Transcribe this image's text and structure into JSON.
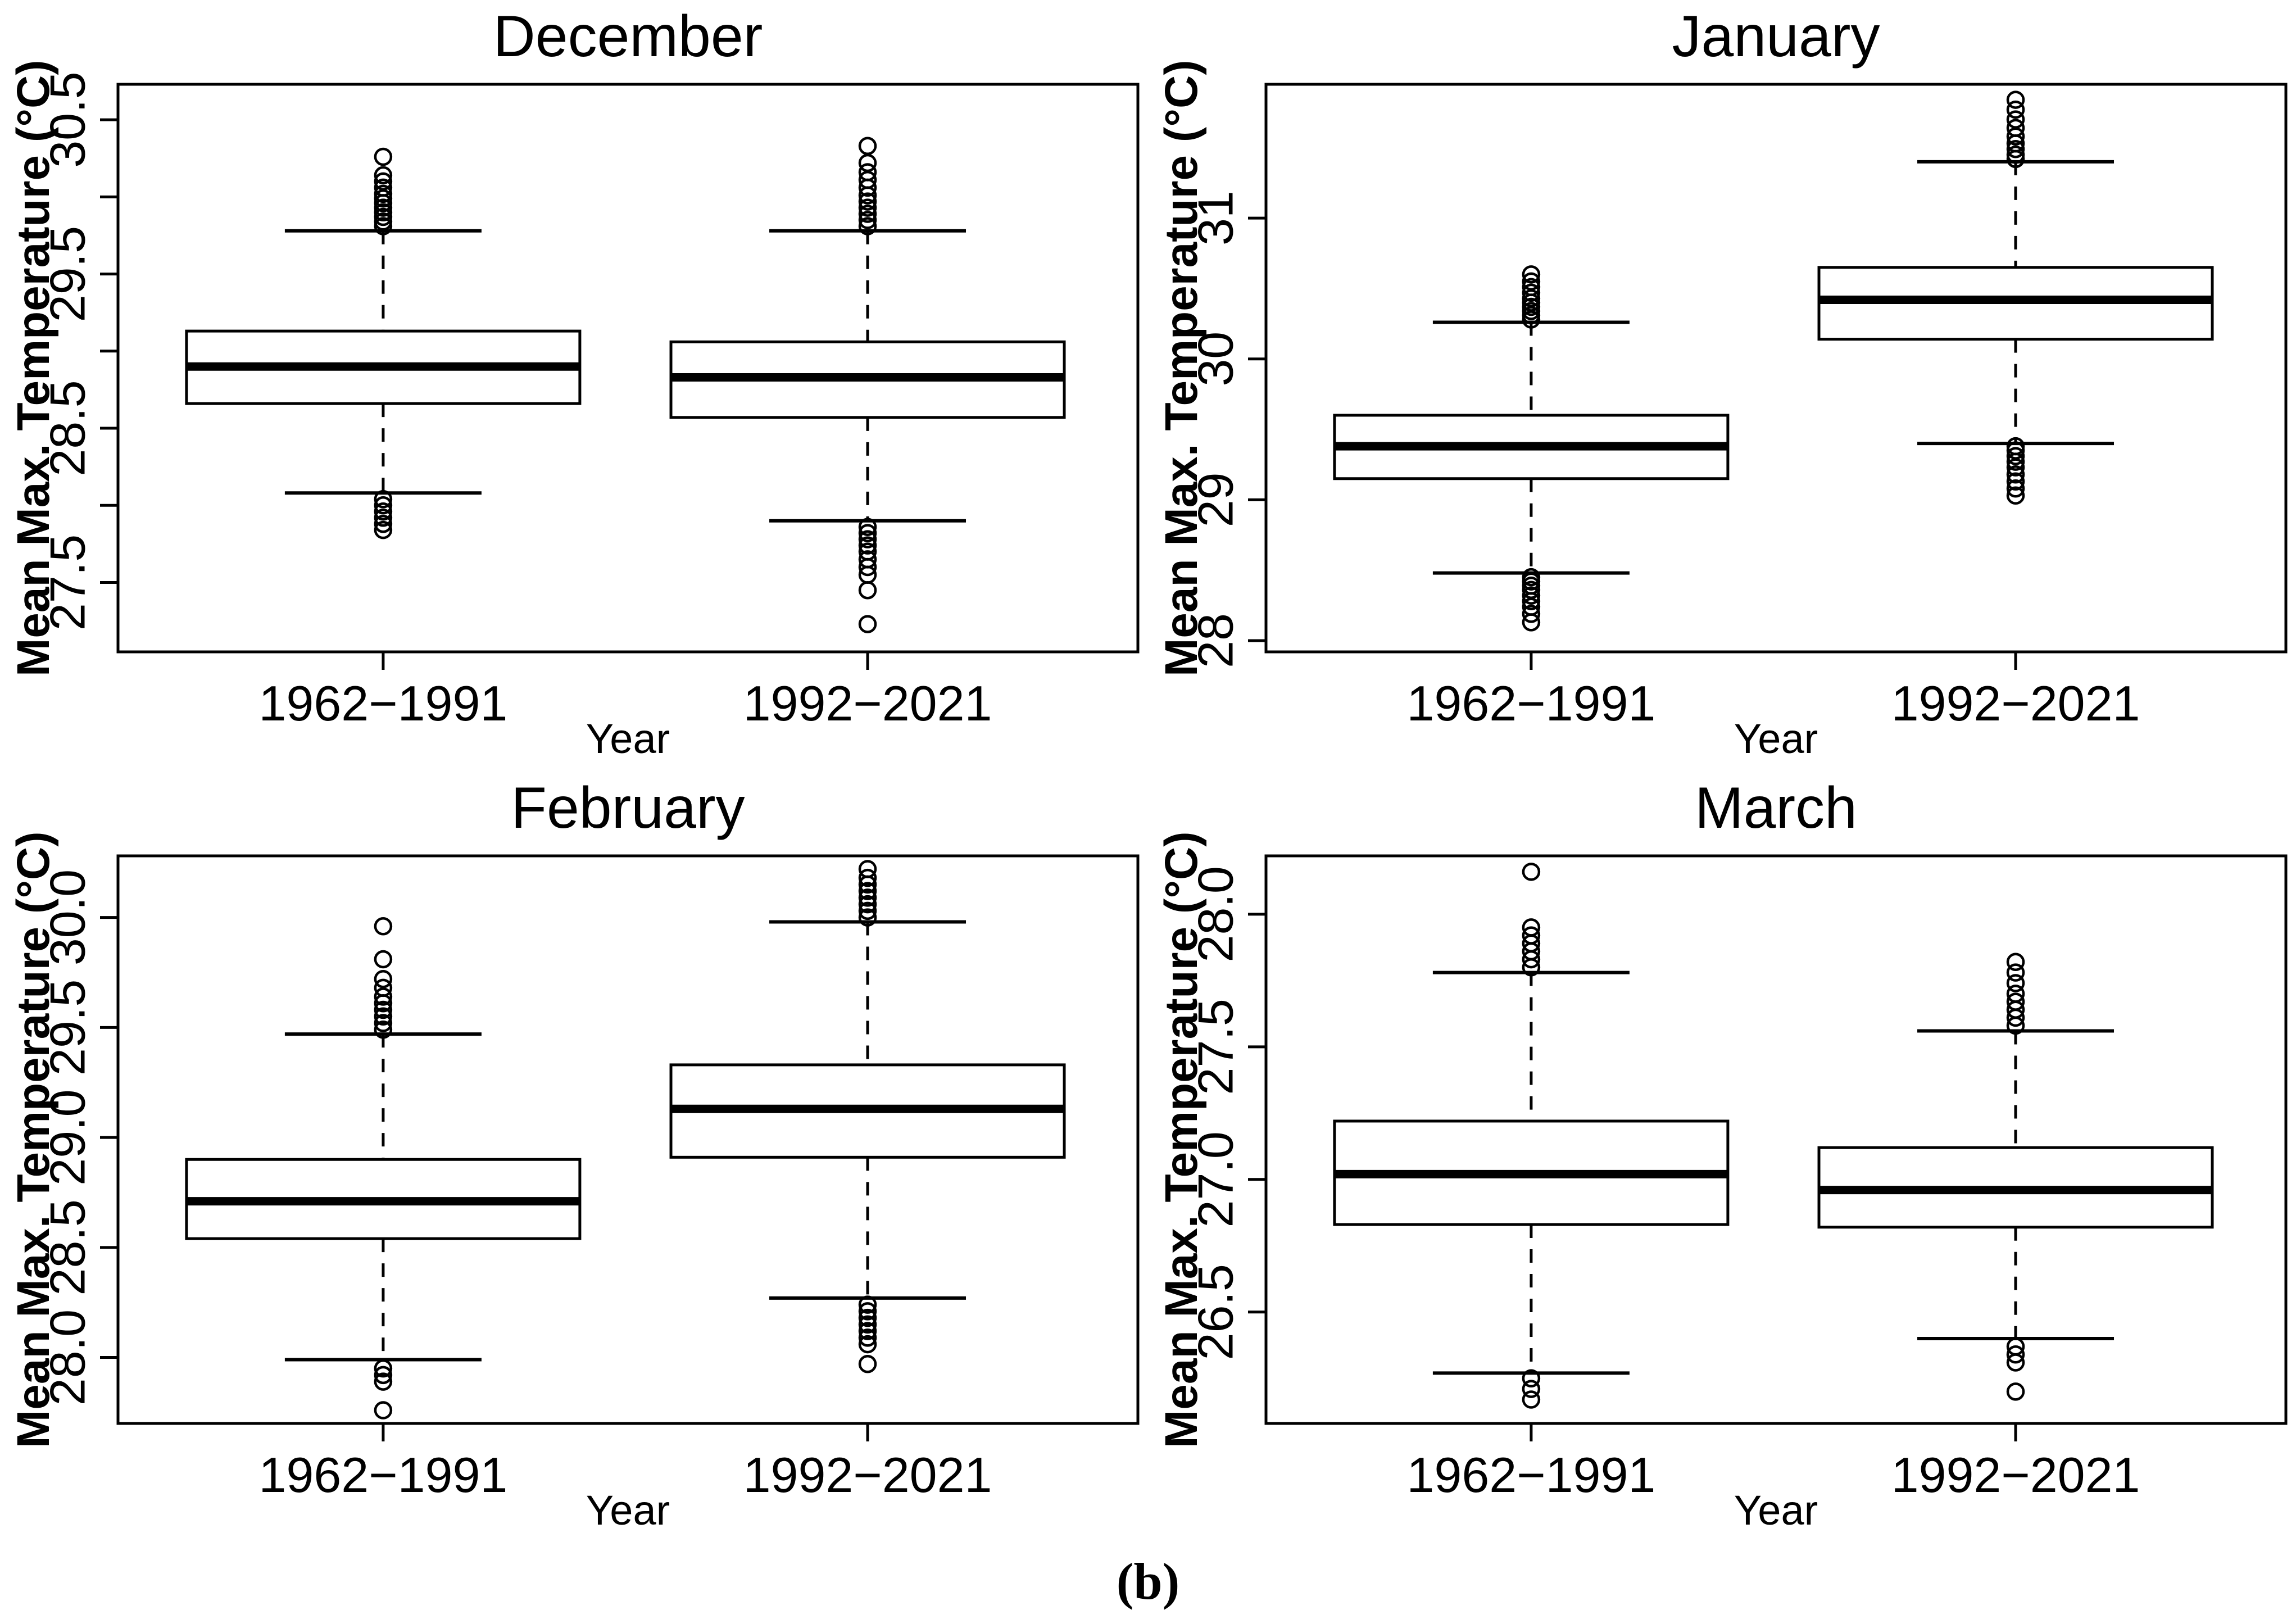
{
  "figure": {
    "caption": "(b)",
    "background_color": "#ffffff",
    "ink_color": "#000000"
  },
  "chart_data": [
    {
      "type": "boxplot",
      "title": "December",
      "xlabel": "Year",
      "ylabel": "Mean Max. Temperature (°C)",
      "categories": [
        "1962−1991",
        "1992−2021"
      ],
      "ylim": [
        27.05,
        30.73
      ],
      "grid": false,
      "yticks": [
        {
          "value": 27.5,
          "label": "27.5"
        },
        {
          "value": 28.0,
          "label": ""
        },
        {
          "value": 28.5,
          "label": "28.5"
        },
        {
          "value": 29.0,
          "label": ""
        },
        {
          "value": 29.5,
          "label": "29.5"
        },
        {
          "value": 30.0,
          "label": ""
        },
        {
          "value": 30.5,
          "label": "30.5"
        }
      ],
      "series": [
        {
          "name": "1962−1991",
          "whisker_low": 28.08,
          "q1": 28.66,
          "median": 28.9,
          "q3": 29.13,
          "whisker_high": 29.78,
          "outliers_high": [
            29.81,
            29.84,
            29.87,
            29.9,
            29.93,
            29.96,
            29.99,
            30.02,
            30.06,
            30.1,
            30.14,
            30.26
          ],
          "outliers_low": [
            28.04,
            28.0,
            27.96,
            27.92,
            27.88,
            27.84
          ]
        },
        {
          "name": "1992−2021",
          "whisker_low": 27.9,
          "q1": 28.57,
          "median": 28.83,
          "q3": 29.06,
          "whisker_high": 29.78,
          "outliers_high": [
            29.81,
            29.85,
            29.89,
            29.93,
            29.97,
            30.01,
            30.06,
            30.11,
            30.16,
            30.22,
            30.33
          ],
          "outliers_low": [
            27.86,
            27.82,
            27.78,
            27.74,
            27.7,
            27.65,
            27.6,
            27.55,
            27.45,
            27.23
          ]
        }
      ]
    },
    {
      "type": "boxplot",
      "title": "January",
      "xlabel": "Year",
      "ylabel": "Mean Max. Temperature (°C)",
      "categories": [
        "1962−1991",
        "1992−2021"
      ],
      "ylim": [
        27.92,
        31.95
      ],
      "grid": false,
      "yticks": [
        {
          "value": 28,
          "label": "28"
        },
        {
          "value": 29,
          "label": "29"
        },
        {
          "value": 30,
          "label": "30"
        },
        {
          "value": 31,
          "label": "31"
        }
      ],
      "series": [
        {
          "name": "1962−1991",
          "whisker_low": 28.48,
          "q1": 29.15,
          "median": 29.38,
          "q3": 29.6,
          "whisker_high": 30.26,
          "outliers_high": [
            30.28,
            30.31,
            30.34,
            30.37,
            30.4,
            30.43,
            30.47,
            30.51,
            30.55,
            30.6
          ],
          "outliers_low": [
            28.45,
            28.42,
            28.39,
            28.36,
            28.32,
            28.28,
            28.24,
            28.19,
            28.13
          ]
        },
        {
          "name": "1992−2021",
          "whisker_low": 29.4,
          "q1": 30.14,
          "median": 30.42,
          "q3": 30.65,
          "whisker_high": 31.4,
          "outliers_high": [
            31.42,
            31.45,
            31.49,
            31.53,
            31.58,
            31.64,
            31.7,
            31.77,
            31.84
          ],
          "outliers_low": [
            29.38,
            29.35,
            29.31,
            29.27,
            29.23,
            29.18,
            29.13,
            29.08,
            29.03
          ]
        }
      ]
    },
    {
      "type": "boxplot",
      "title": "February",
      "xlabel": "Year",
      "ylabel": "Mean Max. Temperature (°C)",
      "categories": [
        "1962−1991",
        "1992−2021"
      ],
      "ylim": [
        27.7,
        30.28
      ],
      "grid": false,
      "yticks": [
        {
          "value": 28.0,
          "label": "28.0"
        },
        {
          "value": 28.5,
          "label": "28.5"
        },
        {
          "value": 29.0,
          "label": "29.0"
        },
        {
          "value": 29.5,
          "label": "29.5"
        },
        {
          "value": 30.0,
          "label": "30.0"
        }
      ],
      "series": [
        {
          "name": "1962−1991",
          "whisker_low": 27.99,
          "q1": 28.54,
          "median": 28.71,
          "q3": 28.9,
          "whisker_high": 29.47,
          "outliers_high": [
            29.49,
            29.52,
            29.55,
            29.58,
            29.61,
            29.64,
            29.68,
            29.72,
            29.81,
            29.96
          ],
          "outliers_low": [
            27.95,
            27.92,
            27.89,
            27.76
          ]
        },
        {
          "name": "1992−2021",
          "whisker_low": 28.27,
          "q1": 28.91,
          "median": 29.13,
          "q3": 29.33,
          "whisker_high": 29.98,
          "outliers_high": [
            30.0,
            30.03,
            30.06,
            30.09,
            30.12,
            30.15,
            30.18,
            30.22
          ],
          "outliers_low": [
            28.24,
            28.21,
            28.18,
            28.15,
            28.12,
            28.09,
            28.06,
            27.97
          ]
        }
      ]
    },
    {
      "type": "boxplot",
      "title": "March",
      "xlabel": "Year",
      "ylabel": "Mean Max. Temperature (°C)",
      "categories": [
        "1962−1991",
        "1992−2021"
      ],
      "ylim": [
        26.08,
        28.22
      ],
      "grid": false,
      "yticks": [
        {
          "value": 26.5,
          "label": "26.5"
        },
        {
          "value": 27.0,
          "label": "27.0"
        },
        {
          "value": 27.5,
          "label": "27.5"
        },
        {
          "value": 28.0,
          "label": "28.0"
        }
      ],
      "series": [
        {
          "name": "1962−1991",
          "whisker_low": 26.27,
          "q1": 26.83,
          "median": 27.02,
          "q3": 27.22,
          "whisker_high": 27.78,
          "outliers_high": [
            27.8,
            27.83,
            27.86,
            27.89,
            27.92,
            27.95,
            28.16
          ],
          "outliers_low": [
            26.25,
            26.21,
            26.17
          ]
        },
        {
          "name": "1992−2021",
          "whisker_low": 26.4,
          "q1": 26.82,
          "median": 26.96,
          "q3": 27.12,
          "whisker_high": 27.56,
          "outliers_high": [
            27.58,
            27.61,
            27.64,
            27.67,
            27.7,
            27.74,
            27.78,
            27.82
          ],
          "outliers_low": [
            26.37,
            26.34,
            26.31,
            26.2
          ]
        }
      ]
    }
  ]
}
